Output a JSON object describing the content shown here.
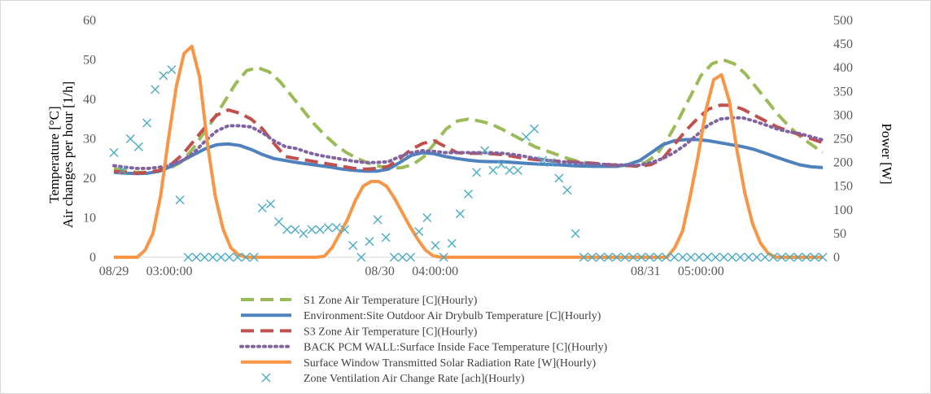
{
  "chart_data": {
    "type": "line",
    "y_left": {
      "title_lines": [
        "Temperature [°C]",
        "Air changes per hour [1/h]"
      ],
      "ylim": [
        0,
        60
      ],
      "ticks": [
        0,
        10,
        20,
        30,
        40,
        50,
        60
      ]
    },
    "y_right": {
      "title": "Power [W]",
      "ylim": [
        0,
        500
      ],
      "ticks": [
        0,
        50,
        100,
        150,
        200,
        250,
        300,
        350,
        400,
        450,
        500
      ]
    },
    "x_tick_labels": [
      {
        "index": 0,
        "label": "08/29"
      },
      {
        "index": 5,
        "label": "03:00:00"
      },
      {
        "index": 24,
        "label": "08/30"
      },
      {
        "index": 29,
        "label": "04:00:00"
      },
      {
        "index": 48,
        "label": "08/31"
      },
      {
        "index": 53,
        "label": "05:00:00"
      }
    ],
    "grid": false,
    "legend_position": "bottom",
    "series": [
      {
        "name": "S1 Zone Air Temperature [C](Hourly)",
        "axis": "left",
        "style": "dashed",
        "color": "#9bbb59",
        "values": [
          22.5,
          22,
          21.5,
          21.5,
          21.8,
          22.5,
          24,
          27,
          31,
          35,
          39.5,
          44,
          47.3,
          48,
          47,
          44.5,
          41,
          37.5,
          34,
          31,
          28.5,
          26.5,
          25,
          23.8,
          23,
          22.5,
          22.7,
          23.5,
          25.5,
          29,
          32.5,
          34.5,
          35,
          34.5,
          33.8,
          32.5,
          31,
          29.5,
          28,
          27,
          26,
          25,
          24.2,
          23.8,
          23.5,
          23.3,
          23.2,
          23.5,
          24,
          26,
          30,
          35,
          40.5,
          46,
          49,
          50,
          49,
          46.5,
          43,
          39.5,
          36,
          33,
          30.5,
          28.5,
          26.5
        ]
      },
      {
        "name": "Environment:Site Outdoor Air Drybulb Temperature [C](Hourly)",
        "axis": "left",
        "style": "solid",
        "color": "#4f81bd",
        "values": [
          21.5,
          21.3,
          21.2,
          21.3,
          21.8,
          23,
          24.5,
          26,
          27.5,
          28.5,
          28.7,
          28.3,
          27.3,
          26,
          25,
          24.5,
          24,
          23.6,
          23.2,
          22.8,
          22.3,
          22,
          21.8,
          21.8,
          22.3,
          24,
          25.8,
          26.5,
          26.2,
          25.5,
          25,
          24.6,
          24.3,
          24.2,
          24.2,
          24,
          23.8,
          23.6,
          23.5,
          23.4,
          23.2,
          23.1,
          23,
          23,
          23,
          23.5,
          24.5,
          26.5,
          28.5,
          29.5,
          29.8,
          29.8,
          29.5,
          29,
          28.5,
          28,
          27.3,
          26.3,
          25.3,
          24.3,
          23.4,
          22.9,
          22.7
        ]
      },
      {
        "name": "S3 Zone Air Temperature [C](Hourly)",
        "axis": "left",
        "style": "dashed",
        "color": "#c0504d",
        "values": [
          21.8,
          21.5,
          21.3,
          21.5,
          22,
          23.5,
          26,
          29.5,
          33,
          36,
          37.3,
          36.5,
          35,
          32.5,
          28.8,
          25.5,
          25,
          24.5,
          24,
          23.5,
          23,
          22.5,
          22.3,
          22.5,
          23,
          25,
          27.3,
          28.8,
          29.5,
          28,
          26.5,
          26.3,
          26.3,
          26.2,
          26,
          25.5,
          25,
          24.7,
          24.5,
          24.3,
          24.2,
          24,
          23.8,
          23.5,
          23.3,
          23.2,
          23,
          23.5,
          25,
          28.5,
          32,
          35,
          37.5,
          38.5,
          38.5,
          37.5,
          36,
          34.5,
          33,
          32,
          31,
          30,
          29
        ]
      },
      {
        "name": "BACK PCM WALL:Surface Inside Face Temperature [C](Hourly)",
        "axis": "left",
        "style": "dotted",
        "color": "#8064a2",
        "values": [
          23.2,
          22.8,
          22.5,
          22.5,
          22.8,
          23.5,
          24.5,
          26.5,
          29.5,
          32,
          33.3,
          33.3,
          33,
          31.5,
          29.5,
          28,
          27.5,
          26.5,
          25.8,
          25.3,
          24.8,
          24.3,
          24,
          24,
          24.2,
          25.5,
          26.5,
          27,
          26.8,
          26.5,
          26.5,
          26.5,
          26.5,
          26.5,
          26.3,
          26,
          25.5,
          25,
          24.5,
          24.2,
          24,
          23.8,
          23.6,
          23.5,
          23.4,
          23.3,
          23.3,
          24,
          25,
          26.5,
          28.5,
          31,
          33.5,
          35,
          35.3,
          35.3,
          34.5,
          33.5,
          32.5,
          31.8,
          31.3,
          30.5,
          29.7
        ]
      },
      {
        "name": "Surface Window Transmitted Solar Radiation Rate [W](Hourly)",
        "axis": "right",
        "style": "solid",
        "color": "#f79646",
        "values": [
          0,
          0,
          0,
          0,
          15,
          50,
          130,
          250,
          360,
          430,
          445,
          380,
          240,
          130,
          60,
          20,
          5,
          0,
          0,
          0,
          0,
          0,
          0,
          0,
          0,
          0,
          0,
          2,
          20,
          50,
          80,
          120,
          150,
          160,
          160,
          150,
          125,
          95,
          65,
          38,
          15,
          3,
          0,
          0,
          0,
          0,
          0,
          0,
          0,
          0,
          0,
          0,
          0,
          0,
          0,
          0,
          0,
          0,
          0,
          0,
          0,
          0,
          0,
          0,
          0,
          0,
          0,
          0,
          0,
          0,
          0,
          0,
          20,
          55,
          130,
          215,
          310,
          375,
          385,
          330,
          225,
          135,
          70,
          30,
          8,
          0,
          0,
          0,
          0,
          0,
          0,
          0
        ]
      },
      {
        "name": "Zone Ventilation Air Change Rate [ach](Hourly)",
        "axis": "left",
        "style": "marker-x",
        "color": "#4bacc6",
        "values": [
          26.5,
          22,
          30,
          28,
          34,
          42.5,
          46,
          47.5,
          14.5,
          0,
          0,
          0,
          0,
          0,
          0,
          0,
          0,
          0,
          12.5,
          13.5,
          9,
          7,
          7,
          6,
          7,
          7,
          7.5,
          7.5,
          7,
          3,
          0,
          4,
          9.5,
          5,
          0,
          0,
          0,
          6.5,
          10,
          3,
          0,
          3.5,
          11,
          16,
          21.5,
          27,
          22,
          23.5,
          22,
          22,
          30.5,
          32.5,
          24.5,
          24,
          20,
          17,
          6,
          0,
          0,
          0,
          0,
          0,
          0,
          0,
          0,
          0,
          0,
          0,
          0,
          0,
          0,
          0,
          0,
          0,
          0,
          0,
          0,
          0,
          0,
          0,
          0,
          0,
          0,
          0,
          0,
          0,
          0
        ]
      }
    ]
  }
}
